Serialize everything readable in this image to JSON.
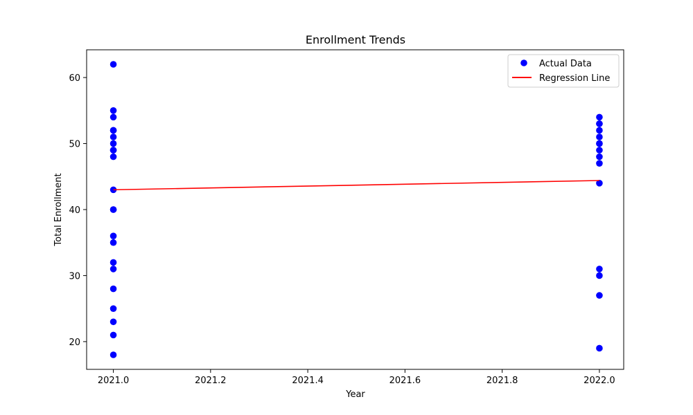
{
  "chart_data": {
    "type": "scatter",
    "title": "Enrollment Trends",
    "xlabel": "Year",
    "ylabel": "Total Enrollment",
    "xlim": [
      1989.945,
      2022.05
    ],
    "ylim": [
      15.8,
      64.2
    ],
    "xticks": [
      2021.0,
      2021.2,
      2021.4,
      2021.6,
      2021.8,
      2022.0
    ],
    "xtick_labels": [
      "2021.0",
      "2021.2",
      "2021.4",
      "2021.6",
      "2021.8",
      "2022.0"
    ],
    "yticks": [
      20,
      30,
      40,
      50,
      60
    ],
    "ytick_labels": [
      "20",
      "30",
      "40",
      "50",
      "60"
    ],
    "grid": false,
    "legend_position": "top-right",
    "legend": [
      {
        "label": "Actual Data",
        "kind": "marker",
        "color": "#0000ff"
      },
      {
        "label": "Regression Line",
        "kind": "line",
        "color": "#ff0000"
      }
    ],
    "series": [
      {
        "name": "Actual Data",
        "kind": "scatter",
        "color": "#0000ff",
        "x": [
          2021,
          2021,
          2021,
          2021,
          2021,
          2021,
          2021,
          2021,
          2021,
          2021,
          2021,
          2021,
          2021,
          2021,
          2021,
          2021,
          2021,
          2021,
          2021,
          2021,
          2021,
          2021,
          2022,
          2022,
          2022,
          2022,
          2022,
          2022,
          2022,
          2022,
          2022,
          2022,
          2022,
          2022,
          2022,
          2022,
          2022
        ],
        "y": [
          62,
          55,
          54,
          52,
          51,
          50,
          49,
          48,
          43,
          40,
          36,
          35,
          32,
          31,
          28,
          25,
          23,
          21,
          18,
          52,
          49,
          40,
          54,
          53,
          52,
          51,
          50,
          49,
          48,
          47,
          44,
          31,
          30,
          27,
          19,
          53,
          50
        ]
      },
      {
        "name": "Regression Line",
        "kind": "line",
        "color": "#ff0000",
        "x": [
          2021,
          2022
        ],
        "y": [
          43.0,
          44.4
        ]
      }
    ]
  }
}
